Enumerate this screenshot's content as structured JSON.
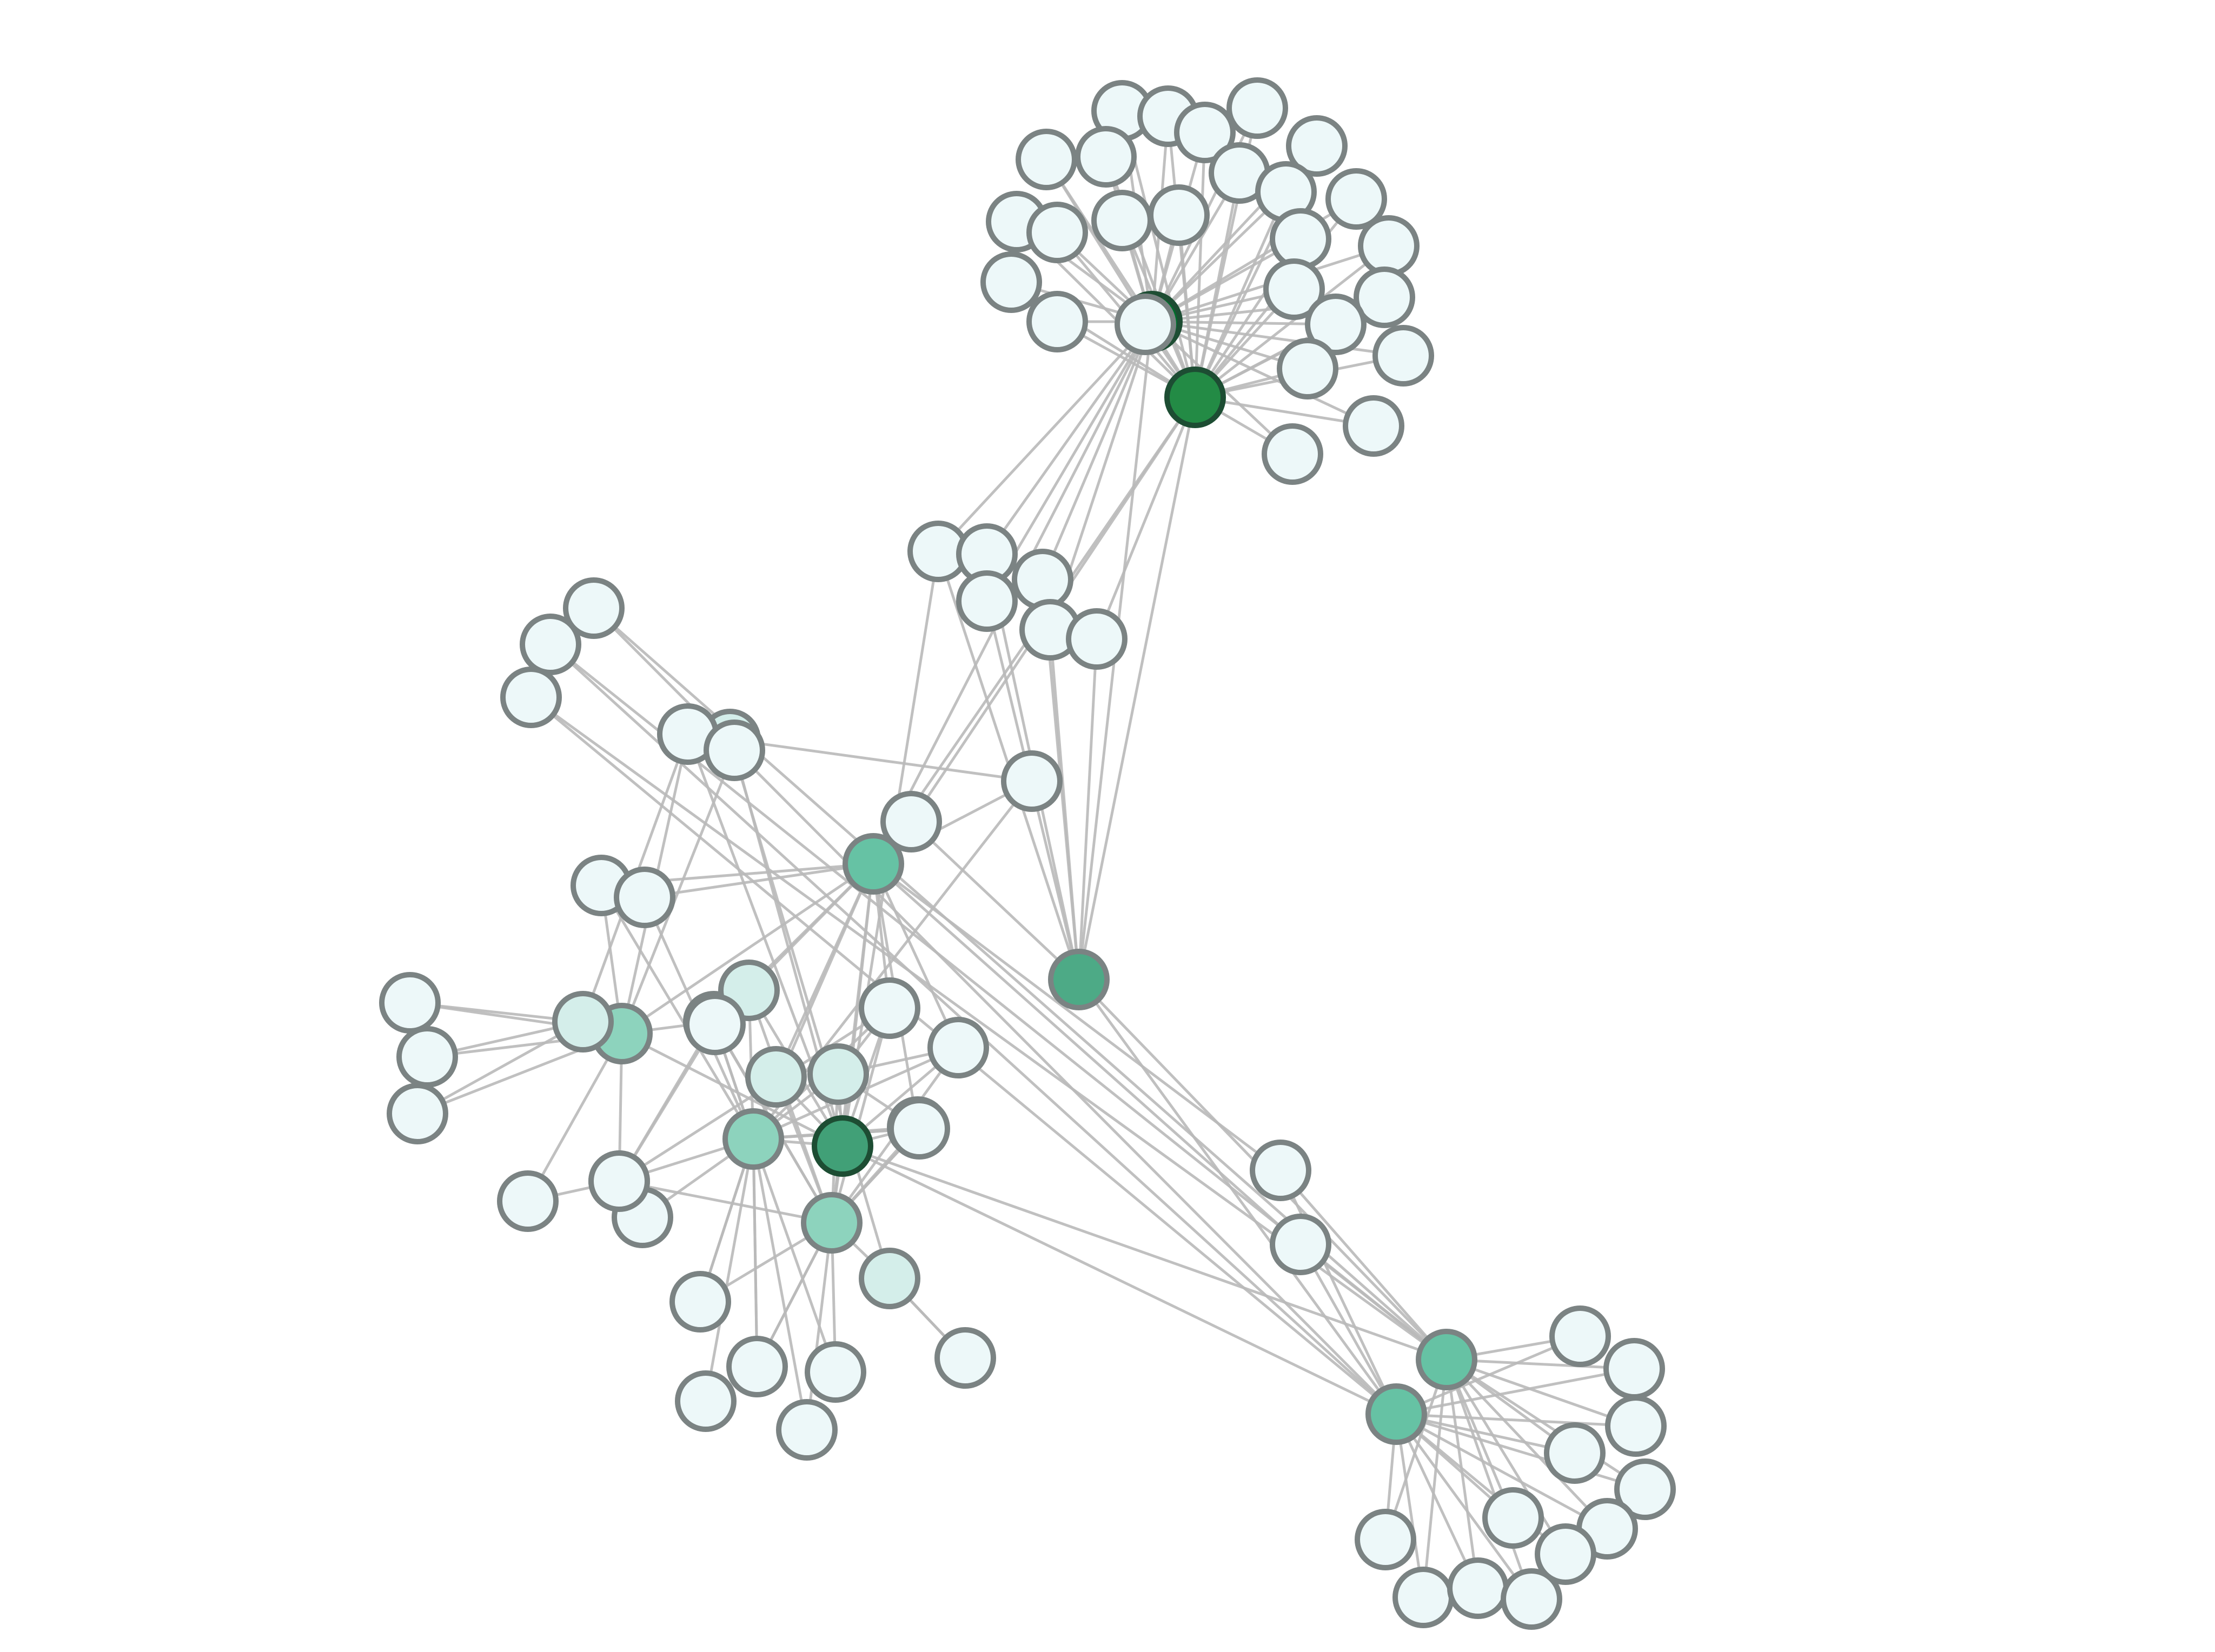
{
  "graph": {
    "colors": {
      "edge": "#b9b9b9",
      "node_stroke": "#7b8383",
      "node_stroke_dark": "#1d4d33",
      "scale": [
        "#edf8f9",
        "#d4eeea",
        "#8dd3bd",
        "#66c2a4",
        "#4daa86",
        "#41a077",
        "#238b45",
        "#006d2c"
      ]
    },
    "nodes": [
      {
        "id": "h1",
        "level": 7
      },
      {
        "id": "h2",
        "level": 6
      },
      {
        "id": "m1",
        "level": 4
      },
      {
        "id": "m2",
        "level": 3
      },
      {
        "id": "m3",
        "level": 5
      },
      {
        "id": "m4",
        "level": 2
      },
      {
        "id": "m5",
        "level": 2
      },
      {
        "id": "m6",
        "level": 2
      },
      {
        "id": "s1",
        "level": 3
      },
      {
        "id": "s2",
        "level": 3
      },
      {
        "id": "w1",
        "level": 1
      },
      {
        "id": "w2",
        "level": 1
      },
      {
        "id": "w3",
        "level": 1
      },
      {
        "id": "w4",
        "level": 1
      },
      {
        "id": "w5",
        "level": 1
      },
      {
        "id": "w6",
        "level": 1
      },
      {
        "id": "w7",
        "level": 1
      },
      {
        "id": "w8",
        "level": 1
      },
      {
        "id": "w9",
        "level": 1
      },
      {
        "id": "t1",
        "level": 0
      },
      {
        "id": "t2",
        "level": 0
      },
      {
        "id": "t3",
        "level": 0
      },
      {
        "id": "t4",
        "level": 0
      },
      {
        "id": "t5",
        "level": 0
      },
      {
        "id": "t6",
        "level": 0
      },
      {
        "id": "t7",
        "level": 0
      },
      {
        "id": "t8",
        "level": 0
      },
      {
        "id": "t9",
        "level": 0
      },
      {
        "id": "t10",
        "level": 0
      },
      {
        "id": "t11",
        "level": 0
      },
      {
        "id": "t12",
        "level": 0
      },
      {
        "id": "t13",
        "level": 0
      },
      {
        "id": "t14",
        "level": 0
      },
      {
        "id": "t15",
        "level": 0
      },
      {
        "id": "t16",
        "level": 0
      },
      {
        "id": "t17",
        "level": 0
      },
      {
        "id": "t18",
        "level": 0
      },
      {
        "id": "t19",
        "level": 0
      },
      {
        "id": "t20",
        "level": 0
      },
      {
        "id": "t21",
        "level": 0
      },
      {
        "id": "t22",
        "level": 0
      },
      {
        "id": "t23",
        "level": 0
      },
      {
        "id": "t24",
        "level": 0
      },
      {
        "id": "t25",
        "level": 0
      },
      {
        "id": "t26",
        "level": 0
      },
      {
        "id": "c1",
        "level": 0
      },
      {
        "id": "c2",
        "level": 0
      },
      {
        "id": "c3",
        "level": 0
      },
      {
        "id": "c4",
        "level": 0
      },
      {
        "id": "c5",
        "level": 0
      },
      {
        "id": "c6",
        "level": 0
      },
      {
        "id": "c7",
        "level": 0
      },
      {
        "id": "c8",
        "level": 0
      },
      {
        "id": "l1",
        "level": 0
      },
      {
        "id": "l2",
        "level": 0
      },
      {
        "id": "l3",
        "level": 0
      },
      {
        "id": "p1",
        "level": 0
      },
      {
        "id": "p2",
        "level": 0
      },
      {
        "id": "f1",
        "level": 0
      },
      {
        "id": "f2",
        "level": 0
      },
      {
        "id": "f3",
        "level": 0
      },
      {
        "id": "k1",
        "level": 0
      },
      {
        "id": "k2",
        "level": 0
      },
      {
        "id": "b1",
        "level": 0
      },
      {
        "id": "b2",
        "level": 0
      },
      {
        "id": "b3",
        "level": 0
      },
      {
        "id": "b4",
        "level": 0
      },
      {
        "id": "b5",
        "level": 0
      },
      {
        "id": "b6",
        "level": 0
      },
      {
        "id": "b7",
        "level": 0
      },
      {
        "id": "b8",
        "level": 0
      },
      {
        "id": "b9",
        "level": 0
      },
      {
        "id": "b10",
        "level": 0
      },
      {
        "id": "b11",
        "level": 0
      },
      {
        "id": "b12",
        "level": 0
      },
      {
        "id": "b13",
        "level": 0
      },
      {
        "id": "r1",
        "level": 0
      },
      {
        "id": "r2",
        "level": 0
      },
      {
        "id": "e1",
        "level": 0
      },
      {
        "id": "e2",
        "level": 0
      },
      {
        "id": "e3",
        "level": 0
      },
      {
        "id": "e4",
        "level": 0
      },
      {
        "id": "e5",
        "level": 0
      },
      {
        "id": "e6",
        "level": 0
      },
      {
        "id": "e7",
        "level": 0
      },
      {
        "id": "e8",
        "level": 0
      },
      {
        "id": "e9",
        "level": 0
      },
      {
        "id": "e10",
        "level": 0
      },
      {
        "id": "e11",
        "level": 0
      },
      {
        "id": "e12",
        "level": 0
      }
    ],
    "edges": [
      [
        "h1",
        "t1"
      ],
      [
        "h1",
        "t2"
      ],
      [
        "h1",
        "t3"
      ],
      [
        "h1",
        "t4"
      ],
      [
        "h1",
        "t5"
      ],
      [
        "h1",
        "t6"
      ],
      [
        "h1",
        "t7"
      ],
      [
        "h1",
        "t8"
      ],
      [
        "h1",
        "t9"
      ],
      [
        "h1",
        "t10"
      ],
      [
        "h1",
        "t11"
      ],
      [
        "h1",
        "t12"
      ],
      [
        "h1",
        "t13"
      ],
      [
        "h1",
        "t14"
      ],
      [
        "h1",
        "t15"
      ],
      [
        "h1",
        "t16"
      ],
      [
        "h1",
        "t17"
      ],
      [
        "h1",
        "t18"
      ],
      [
        "h1",
        "t19"
      ],
      [
        "h1",
        "t20"
      ],
      [
        "h1",
        "t21"
      ],
      [
        "h1",
        "t22"
      ],
      [
        "h1",
        "t23"
      ],
      [
        "h1",
        "t24"
      ],
      [
        "h1",
        "t25"
      ],
      [
        "h1",
        "t26"
      ],
      [
        "h2",
        "t1"
      ],
      [
        "h2",
        "t2"
      ],
      [
        "h2",
        "t3"
      ],
      [
        "h2",
        "t4"
      ],
      [
        "h2",
        "t5"
      ],
      [
        "h2",
        "t6"
      ],
      [
        "h2",
        "t7"
      ],
      [
        "h2",
        "t8"
      ],
      [
        "h2",
        "t9"
      ],
      [
        "h2",
        "t10"
      ],
      [
        "h2",
        "t11"
      ],
      [
        "h2",
        "t12"
      ],
      [
        "h2",
        "t13"
      ],
      [
        "h2",
        "t14"
      ],
      [
        "h2",
        "t15"
      ],
      [
        "h2",
        "t16"
      ],
      [
        "h2",
        "t17"
      ],
      [
        "h2",
        "t18"
      ],
      [
        "h2",
        "t19"
      ],
      [
        "h2",
        "t20"
      ],
      [
        "h2",
        "t21"
      ],
      [
        "h2",
        "t22"
      ],
      [
        "h2",
        "t23"
      ],
      [
        "h2",
        "t24"
      ],
      [
        "h2",
        "t25"
      ],
      [
        "h2",
        "t26"
      ],
      [
        "h1",
        "c1"
      ],
      [
        "h1",
        "c2"
      ],
      [
        "h1",
        "c3"
      ],
      [
        "h1",
        "c4"
      ],
      [
        "h1",
        "c5"
      ],
      [
        "h2",
        "c6"
      ],
      [
        "h2",
        "c7"
      ],
      [
        "h1",
        "m1"
      ],
      [
        "h2",
        "m1"
      ],
      [
        "h2",
        "m2"
      ],
      [
        "h1",
        "m2"
      ],
      [
        "m1",
        "c1"
      ],
      [
        "m1",
        "c2"
      ],
      [
        "m1",
        "c3"
      ],
      [
        "m1",
        "c4"
      ],
      [
        "m1",
        "c5"
      ],
      [
        "m1",
        "c6"
      ],
      [
        "m1",
        "c7"
      ],
      [
        "c8",
        "w1"
      ],
      [
        "c8",
        "m5"
      ],
      [
        "m2",
        "m5"
      ],
      [
        "m1",
        "s1"
      ],
      [
        "m1",
        "s2"
      ],
      [
        "l1",
        "s1"
      ],
      [
        "l2",
        "s1"
      ],
      [
        "l3",
        "s1"
      ],
      [
        "l1",
        "s2"
      ],
      [
        "l2",
        "s2"
      ],
      [
        "l3",
        "s2"
      ],
      [
        "m3",
        "s1"
      ],
      [
        "m3",
        "s2"
      ],
      [
        "m3",
        "p1"
      ],
      [
        "m3",
        "p2"
      ],
      [
        "m3",
        "m2"
      ],
      [
        "m3",
        "c1"
      ],
      [
        "w2",
        "f1"
      ],
      [
        "w2",
        "f2"
      ],
      [
        "w2",
        "f3"
      ],
      [
        "m4",
        "f1"
      ],
      [
        "m4",
        "f2"
      ],
      [
        "m4",
        "f3"
      ],
      [
        "m4",
        "p1"
      ],
      [
        "m4",
        "p2"
      ],
      [
        "w2",
        "p1"
      ],
      [
        "m4",
        "k1"
      ],
      [
        "m4",
        "w9"
      ],
      [
        "m4",
        "w3"
      ],
      [
        "w2",
        "m4"
      ],
      [
        "w9",
        "w3"
      ],
      [
        "m3",
        "m4"
      ],
      [
        "m3",
        "w4"
      ],
      [
        "m3",
        "m5"
      ],
      [
        "m3",
        "w5"
      ],
      [
        "m3",
        "m6"
      ],
      [
        "m3",
        "w6"
      ],
      [
        "m3",
        "w7"
      ],
      [
        "m2",
        "w4"
      ],
      [
        "m2",
        "c8"
      ],
      [
        "m2",
        "m4"
      ],
      [
        "m2",
        "w5"
      ],
      [
        "m2",
        "m6"
      ],
      [
        "m2",
        "w7"
      ],
      [
        "m2",
        "w3"
      ],
      [
        "m5",
        "w4"
      ],
      [
        "m5",
        "w5"
      ],
      [
        "m5",
        "w6"
      ],
      [
        "m5",
        "w7"
      ],
      [
        "m5",
        "w9"
      ],
      [
        "m5",
        "w3"
      ],
      [
        "m5",
        "k1"
      ],
      [
        "m5",
        "k2"
      ],
      [
        "m5",
        "b1"
      ],
      [
        "m5",
        "b2"
      ],
      [
        "m5",
        "b3"
      ],
      [
        "m5",
        "b4"
      ],
      [
        "m5",
        "b5"
      ],
      [
        "m5",
        "b6"
      ],
      [
        "m6",
        "w4"
      ],
      [
        "m6",
        "w5"
      ],
      [
        "m6",
        "w6"
      ],
      [
        "m6",
        "w7"
      ],
      [
        "m6",
        "w9"
      ],
      [
        "m6",
        "w3"
      ],
      [
        "m6",
        "b1"
      ],
      [
        "m6",
        "b2"
      ],
      [
        "m6",
        "b3"
      ],
      [
        "m6",
        "b4"
      ],
      [
        "m6",
        "b5"
      ],
      [
        "m6",
        "b6"
      ],
      [
        "m6",
        "w8"
      ],
      [
        "w6",
        "w7"
      ],
      [
        "w6",
        "b2"
      ],
      [
        "w6",
        "b3"
      ],
      [
        "w8",
        "w1"
      ],
      [
        "w8",
        "b7"
      ],
      [
        "w9",
        "b1"
      ],
      [
        "w9",
        "b2"
      ],
      [
        "m2",
        "r1"
      ],
      [
        "m2",
        "r2"
      ],
      [
        "s1",
        "e1"
      ],
      [
        "s1",
        "e2"
      ],
      [
        "s1",
        "e3"
      ],
      [
        "s1",
        "e4"
      ],
      [
        "s1",
        "e5"
      ],
      [
        "s1",
        "e6"
      ],
      [
        "s1",
        "e7"
      ],
      [
        "s1",
        "e8"
      ],
      [
        "s1",
        "e9"
      ],
      [
        "s1",
        "e10"
      ],
      [
        "s1",
        "e11"
      ],
      [
        "s1",
        "e12"
      ],
      [
        "s2",
        "e1"
      ],
      [
        "s2",
        "e2"
      ],
      [
        "s2",
        "e3"
      ],
      [
        "s2",
        "e4"
      ],
      [
        "s2",
        "e5"
      ],
      [
        "s2",
        "e6"
      ],
      [
        "s2",
        "e7"
      ],
      [
        "s2",
        "e8"
      ],
      [
        "s2",
        "e9"
      ],
      [
        "s2",
        "e10"
      ],
      [
        "s2",
        "e11"
      ],
      [
        "s2",
        "e12"
      ],
      [
        "r1",
        "s1"
      ],
      [
        "r1",
        "s2"
      ],
      [
        "r2",
        "s1"
      ],
      [
        "r2",
        "s2"
      ]
    ]
  }
}
